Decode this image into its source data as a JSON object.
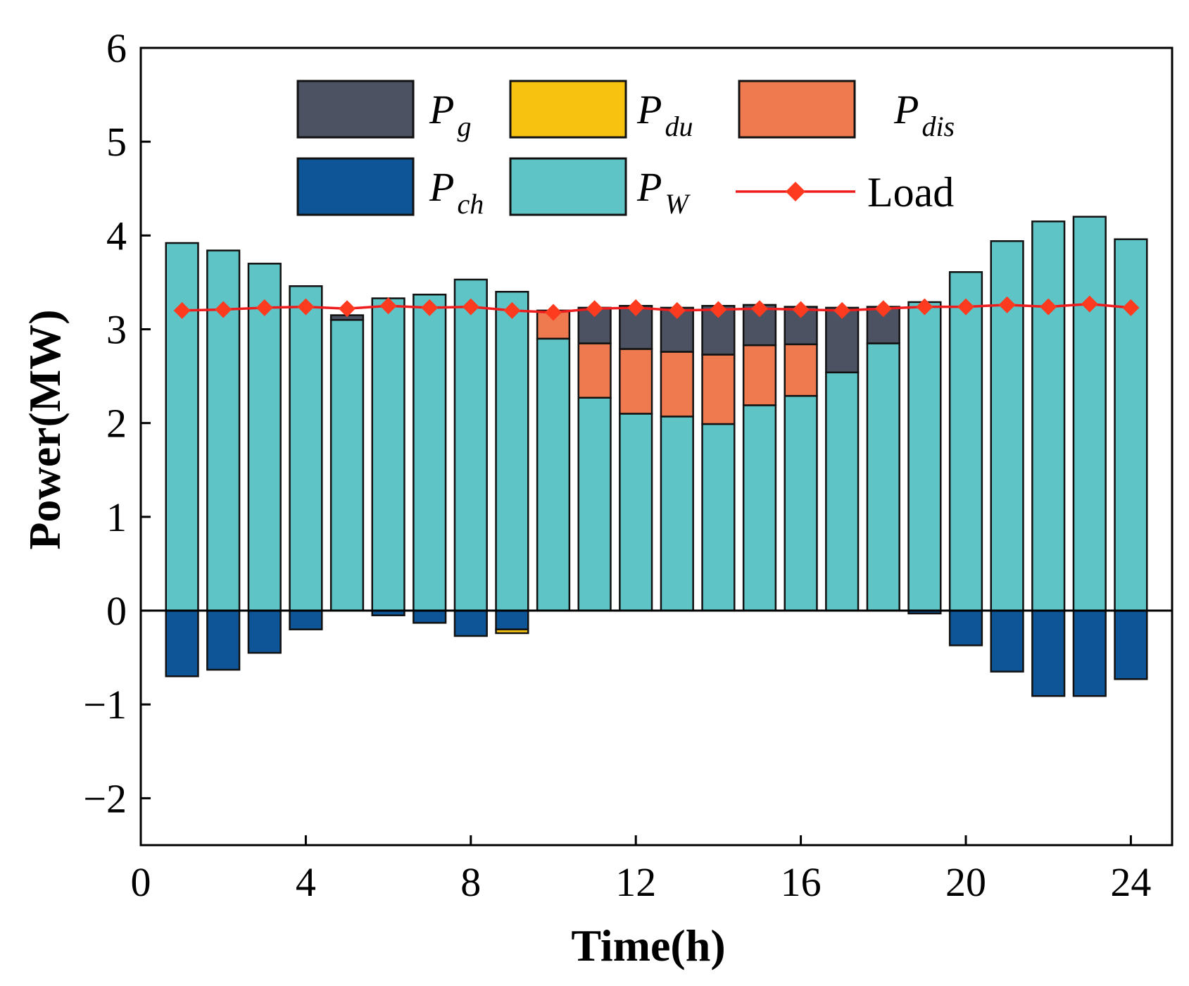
{
  "chart_data": {
    "type": "bar",
    "xlabel": "Time(h)",
    "ylabel": "Power(MW)",
    "xlim": [
      0,
      25
    ],
    "ylim": [
      -2.5,
      6
    ],
    "x_ticks": [
      0,
      4,
      8,
      12,
      16,
      20,
      24
    ],
    "y_ticks": [
      -2,
      -1,
      0,
      1,
      2,
      3,
      4,
      5,
      6
    ],
    "y_tick_labels": [
      "−2",
      "−1",
      "0",
      "1",
      "2",
      "3",
      "4",
      "5",
      "6"
    ],
    "legend_position": "top",
    "x": [
      1,
      2,
      3,
      4,
      5,
      6,
      7,
      8,
      9,
      10,
      11,
      12,
      13,
      14,
      15,
      16,
      17,
      18,
      19,
      20,
      21,
      22,
      23,
      24
    ],
    "series": [
      {
        "name": "P_W",
        "legend_main": "P",
        "legend_sub": "W",
        "kind": "bar",
        "color": "#5ec4c6",
        "values": [
          3.92,
          3.84,
          3.7,
          3.46,
          3.1,
          3.33,
          3.37,
          3.53,
          3.4,
          2.9,
          2.27,
          2.1,
          2.07,
          1.99,
          2.19,
          2.29,
          2.54,
          2.85,
          3.29,
          3.61,
          3.94,
          4.15,
          4.2,
          3.96
        ]
      },
      {
        "name": "P_dis",
        "legend_main": "P",
        "legend_sub": "dis",
        "kind": "bar",
        "color": "#ef7a50",
        "values": [
          0,
          0,
          0,
          0,
          0,
          0,
          0,
          0,
          0,
          0.3,
          0.58,
          0.69,
          0.69,
          0.74,
          0.64,
          0.55,
          0,
          0,
          0,
          0,
          0,
          0,
          0,
          0
        ]
      },
      {
        "name": "P_g",
        "legend_main": "P",
        "legend_sub": "g",
        "kind": "bar",
        "color": "#4c5262",
        "values": [
          0,
          0,
          0,
          0,
          0.05,
          0,
          0,
          0,
          0,
          0,
          0.38,
          0.46,
          0.47,
          0.52,
          0.43,
          0.4,
          0.69,
          0.39,
          0,
          0,
          0,
          0,
          0,
          0
        ]
      },
      {
        "name": "P_ch",
        "legend_main": "P",
        "legend_sub": "ch",
        "kind": "bar",
        "color": "#0d5596",
        "values": [
          -0.7,
          -0.63,
          -0.45,
          -0.2,
          0,
          -0.05,
          -0.13,
          -0.27,
          -0.2,
          0,
          0,
          0,
          0,
          0,
          0,
          0,
          0,
          0,
          -0.03,
          -0.37,
          -0.65,
          -0.91,
          -0.91,
          -0.73
        ]
      },
      {
        "name": "P_du",
        "legend_main": "P",
        "legend_sub": "du",
        "kind": "bar",
        "color": "#f7c210",
        "values": [
          0,
          0,
          0,
          0,
          0,
          0,
          0,
          0,
          -0.04,
          0,
          0,
          0,
          0,
          0,
          0,
          0,
          0,
          0,
          0,
          0,
          0,
          0,
          0,
          0
        ]
      },
      {
        "name": "Load",
        "kind": "line",
        "color": "#ee1c1c",
        "marker_color": "#ff3b1f",
        "values": [
          3.2,
          3.21,
          3.23,
          3.24,
          3.22,
          3.25,
          3.23,
          3.24,
          3.2,
          3.18,
          3.22,
          3.23,
          3.2,
          3.21,
          3.22,
          3.21,
          3.2,
          3.22,
          3.24,
          3.24,
          3.26,
          3.24,
          3.27,
          3.23
        ]
      }
    ]
  }
}
